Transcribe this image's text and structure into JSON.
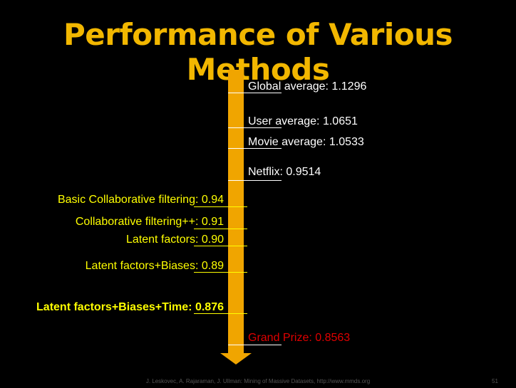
{
  "slide": {
    "title": "Performance of Various Methods",
    "footer": "J. Leskovec, A. Rajaraman, J. Ullman: Mining of Massive Datasets, http://www.mmds.org",
    "page_number": "51"
  },
  "colors": {
    "title": "#f2b700",
    "arrow": "#f0a500",
    "baseline_labels": "#ffffff",
    "method_labels": "#ffff00",
    "grand_prize": "#e00000"
  },
  "chart_data": {
    "type": "table",
    "axis": "RMSE (decreasing downward)",
    "baselines": [
      {
        "label": "Global average:",
        "value": "1.1296"
      },
      {
        "label": "User average:",
        "value": "1.0651"
      },
      {
        "label": "Movie average:",
        "value": "1.0533"
      },
      {
        "label": "Netflix:",
        "value": "0.9514"
      }
    ],
    "methods": [
      {
        "label": "Basic Collaborative filtering:",
        "value": "0.94"
      },
      {
        "label": "Collaborative filtering++:",
        "value": "0.91"
      },
      {
        "label": "Latent factors:",
        "value": "0.90"
      },
      {
        "label": "Latent factors+Biases:",
        "value": "0.89"
      },
      {
        "label": "Latent factors+Biases+Time:",
        "value": "0.876"
      }
    ],
    "target": {
      "label": "Grand Prize:",
      "value": "0.8563"
    }
  }
}
